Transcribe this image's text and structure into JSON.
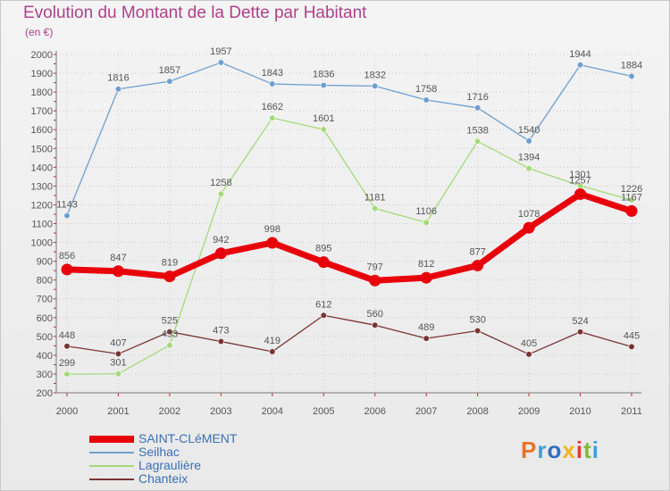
{
  "header": {
    "title": "Evolution du Montant de la Dette par Habitant",
    "unit": "(en €)"
  },
  "logo": {
    "letters": [
      "P",
      "r",
      "o",
      "x",
      "i",
      "t",
      "i"
    ],
    "colors": [
      "#e8742a",
      "#3ca0d8",
      "#2f6fc0",
      "#f2b51f",
      "#e03c31",
      "#7dbb3d",
      "#3ca0d8"
    ]
  },
  "chart_data": {
    "type": "line",
    "categories": [
      "2000",
      "2001",
      "2002",
      "2003",
      "2004",
      "2005",
      "2006",
      "2007",
      "2008",
      "2009",
      "2010",
      "2011"
    ],
    "ylim": [
      200,
      2000
    ],
    "yticks": [
      200,
      300,
      400,
      500,
      600,
      700,
      800,
      900,
      1000,
      1100,
      1200,
      1300,
      1400,
      1500,
      1600,
      1700,
      1800,
      1900,
      2000
    ],
    "series": [
      {
        "name": "SAINT-CLéMENT",
        "color": "#e8000b",
        "values": [
          856,
          847,
          819,
          942,
          998,
          895,
          797,
          812,
          877,
          1078,
          1257,
          1167
        ]
      },
      {
        "name": "Seilhac",
        "color": "#6f9fcf",
        "values": [
          1143,
          1816,
          1857,
          1957,
          1843,
          1836,
          1832,
          1758,
          1716,
          1540,
          1944,
          1884
        ]
      },
      {
        "name": "Lagraulière",
        "color": "#a4da7a",
        "values": [
          299,
          301,
          453,
          1258,
          1662,
          1601,
          1181,
          1106,
          1538,
          1394,
          1301,
          1226
        ]
      },
      {
        "name": "Chanteix",
        "color": "#7a3333",
        "values": [
          448,
          407,
          525,
          473,
          419,
          612,
          560,
          489,
          530,
          405,
          524,
          445
        ]
      }
    ]
  }
}
